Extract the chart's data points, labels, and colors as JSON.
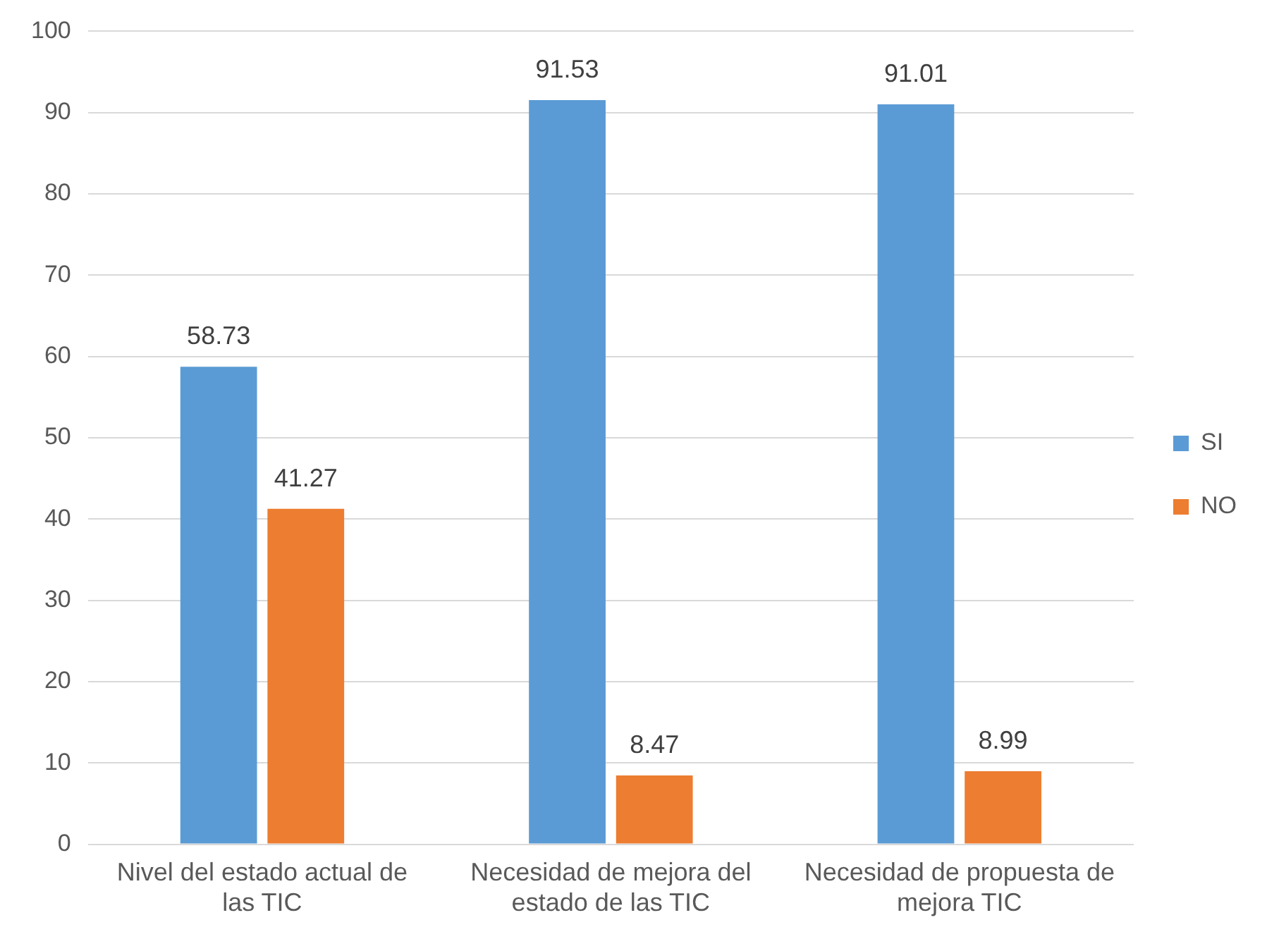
{
  "chart_data": {
    "type": "bar",
    "categories": [
      "Nivel del estado actual de las TIC",
      "Necesidad de mejora del estado de las TIC",
      "Necesidad de propuesta de mejora TIC"
    ],
    "series": [
      {
        "name": "SI",
        "color": "#5b9bd5",
        "values": [
          58.73,
          91.53,
          91.01
        ]
      },
      {
        "name": "NO",
        "color": "#ed7d31",
        "values": [
          41.27,
          8.47,
          8.99
        ]
      }
    ],
    "ylim": [
      0,
      100
    ],
    "yticks": [
      0,
      10,
      20,
      30,
      40,
      50,
      60,
      70,
      80,
      90,
      100
    ],
    "grid": "y",
    "legend": "right",
    "data_labels": true
  }
}
